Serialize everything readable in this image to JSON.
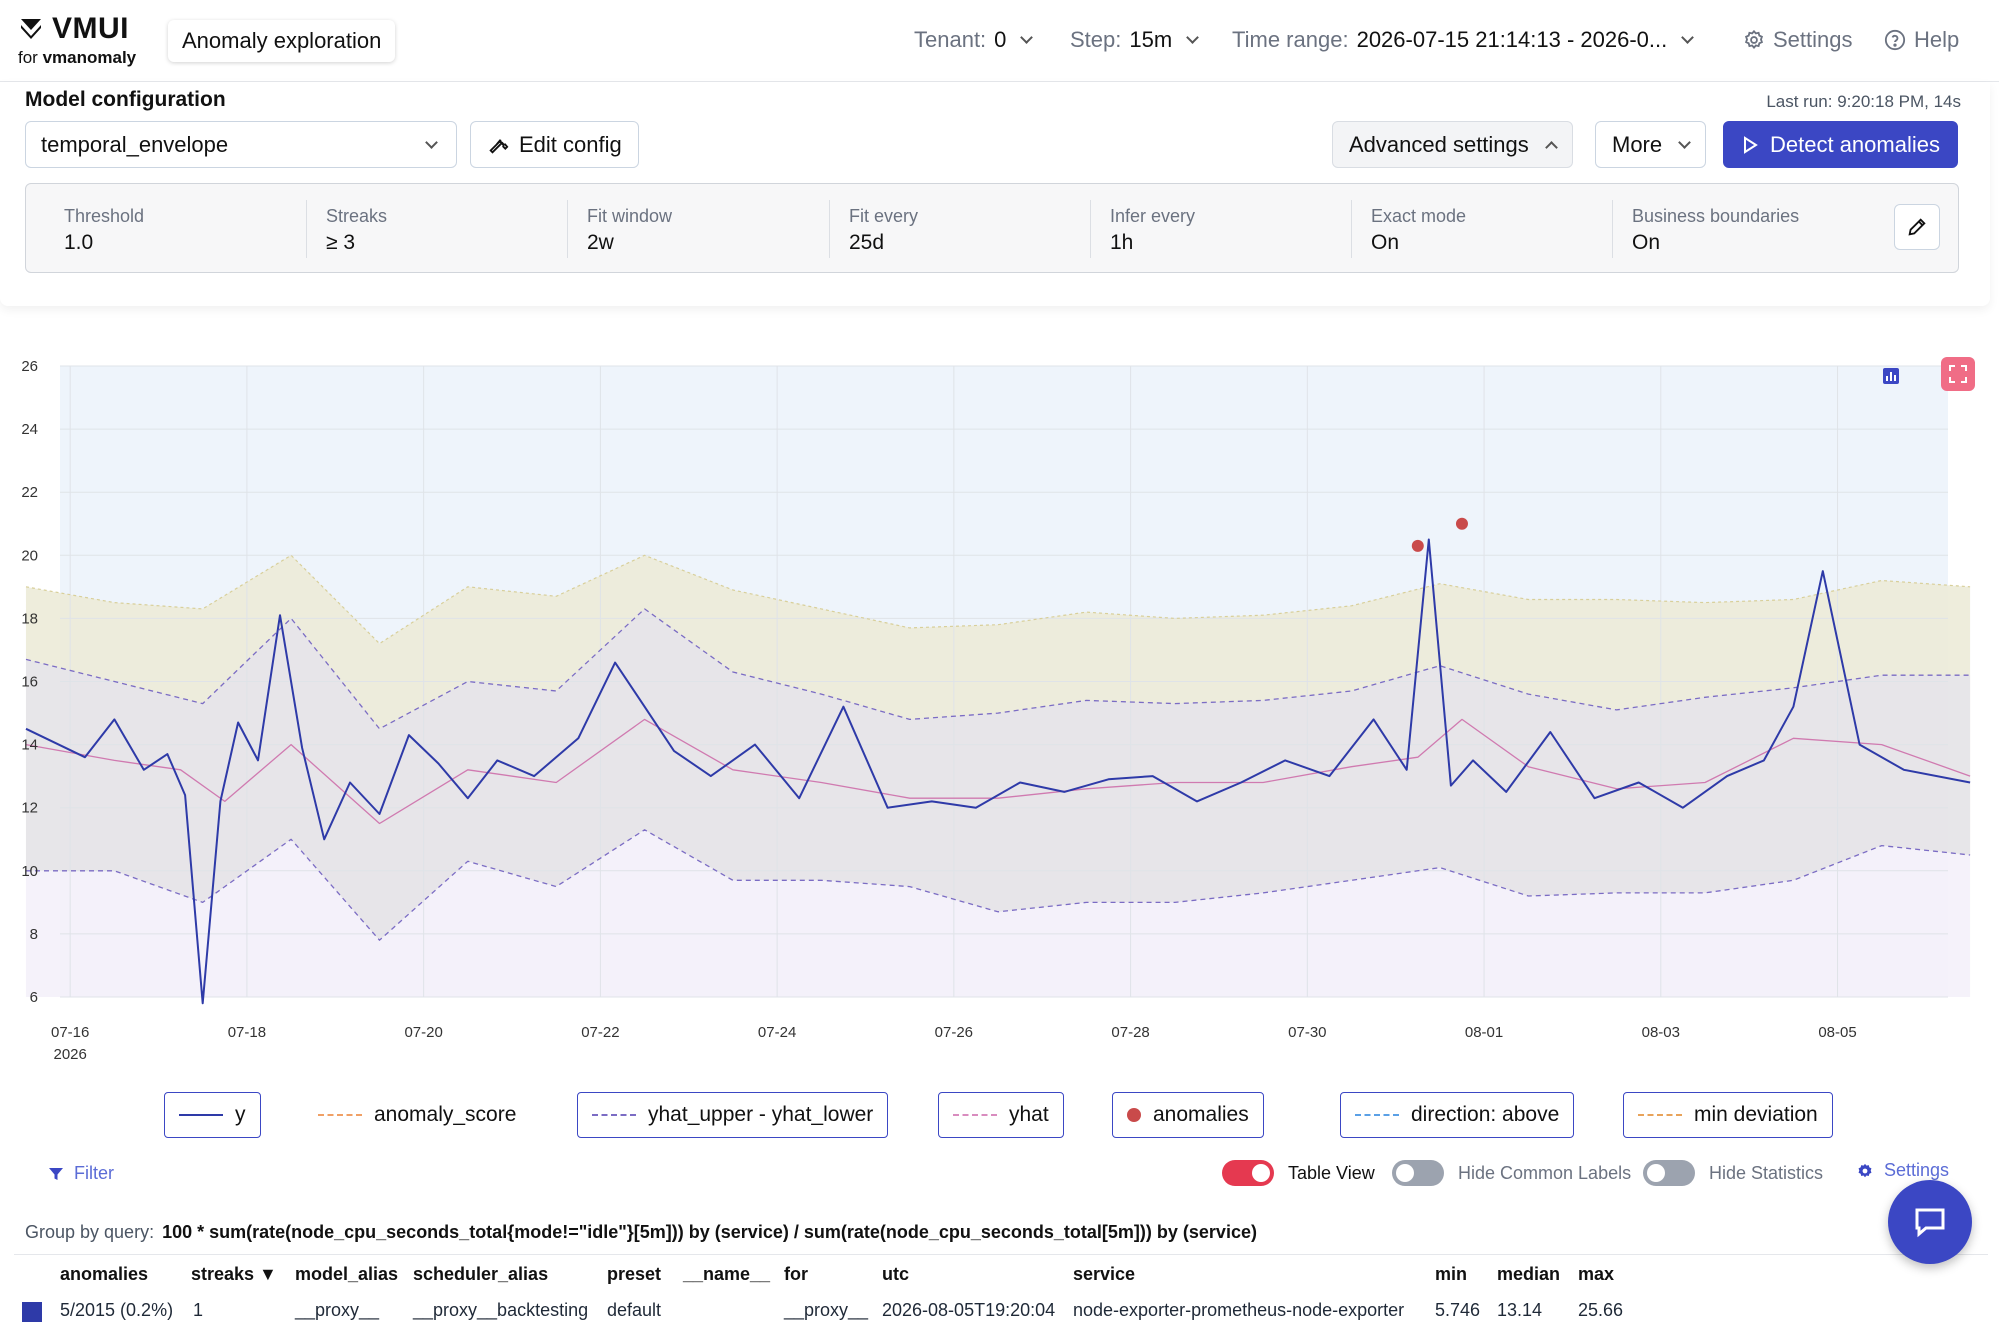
{
  "header": {
    "logo_main": "VMUI",
    "logo_for": "for",
    "logo_product": "vmanomaly",
    "active_tab": "Anomaly exploration",
    "tenant_label": "Tenant:",
    "tenant_value": "0",
    "step_label": "Step:",
    "step_value": "15m",
    "time_range_label": "Time range:",
    "time_range_value": "2026-07-15 21:14:13 - 2026-0...",
    "settings_label": "Settings",
    "help_label": "Help"
  },
  "model_config": {
    "title": "Model configuration",
    "last_run": "Last run: 9:20:18 PM, 14s",
    "model_select": "temporal_envelope",
    "edit_config_label": "Edit config",
    "advanced_settings_label": "Advanced settings",
    "more_label": "More",
    "detect_label": "Detect anomalies",
    "params": [
      {
        "label": "Threshold",
        "value": "1.0"
      },
      {
        "label": "Streaks",
        "value": "≥ 3"
      },
      {
        "label": "Fit window",
        "value": "2w"
      },
      {
        "label": "Fit every",
        "value": "25d"
      },
      {
        "label": "Infer every",
        "value": "1h"
      },
      {
        "label": "Exact mode",
        "value": "On"
      },
      {
        "label": "Business boundaries",
        "value": "On"
      }
    ]
  },
  "chart_data": {
    "type": "line",
    "title": "",
    "xlabel": "",
    "ylabel": "",
    "ylim": [
      6,
      26
    ],
    "y_ticks": [
      "6",
      "8",
      "10",
      "12",
      "14",
      "16",
      "18",
      "20",
      "22",
      "24",
      "26"
    ],
    "x_range": [
      "2026-07-15",
      "2026-08-06"
    ],
    "x_ticks": [
      "07-16",
      "07-18",
      "07-20",
      "07-22",
      "07-24",
      "07-26",
      "07-28",
      "07-30",
      "08-01",
      "08-03",
      "08-05"
    ],
    "x_year_label": "2026",
    "grid": true,
    "series": [
      {
        "name": "y",
        "color": "#2e3aa8",
        "x": [
          "07-15",
          "07-16",
          "07-16",
          "07-16",
          "07-17",
          "07-17",
          "07-17",
          "07-17",
          "07-17",
          "07-18",
          "07-18",
          "07-18",
          "07-18",
          "07-19",
          "07-19",
          "07-19",
          "07-20",
          "07-20",
          "07-20",
          "07-21",
          "07-21",
          "07-22",
          "07-22",
          "07-22",
          "07-23",
          "07-23",
          "07-24",
          "07-24",
          "07-25",
          "07-25",
          "07-26",
          "07-26",
          "07-27",
          "07-27",
          "07-28",
          "07-28",
          "07-29",
          "07-29",
          "07-30",
          "07-30",
          "07-31",
          "07-31",
          "07-31",
          "07-31",
          "08-01",
          "08-01",
          "08-02",
          "08-02",
          "08-03",
          "08-03",
          "08-04",
          "08-04",
          "08-04",
          "08-05",
          "08-05",
          "08-06"
        ],
        "values": [
          14.5,
          13.6,
          14.8,
          13.2,
          13.7,
          12.4,
          5.8,
          12.2,
          14.7,
          13.5,
          18.1,
          13.9,
          11.0,
          12.8,
          11.8,
          14.3,
          13.4,
          12.3,
          13.5,
          13.0,
          14.2,
          16.6,
          15.2,
          13.8,
          13.0,
          14.0,
          12.3,
          15.2,
          12.0,
          12.2,
          12.0,
          12.8,
          12.5,
          12.9,
          13.0,
          12.2,
          12.8,
          13.5,
          13.0,
          14.8,
          13.2,
          20.5,
          12.7,
          13.5,
          12.5,
          14.4,
          12.3,
          12.8,
          12.0,
          13.0,
          13.5,
          15.2,
          19.5,
          14.0,
          13.2,
          12.8
        ]
      },
      {
        "name": "yhat",
        "color": "#d98cbf",
        "x": [
          "07-15",
          "07-16",
          "07-17",
          "07-17",
          "07-18",
          "07-19",
          "07-20",
          "07-21",
          "07-22",
          "07-23",
          "07-24",
          "07-25",
          "07-26",
          "07-27",
          "07-28",
          "07-29",
          "07-30",
          "07-31",
          "07-31",
          "08-01",
          "08-02",
          "08-03",
          "08-04",
          "08-05",
          "08-06"
        ],
        "values": [
          14.0,
          13.5,
          13.2,
          12.2,
          14.0,
          11.5,
          13.2,
          12.8,
          14.8,
          13.2,
          12.8,
          12.3,
          12.3,
          12.6,
          12.8,
          12.8,
          13.3,
          13.6,
          14.8,
          13.3,
          12.6,
          12.8,
          14.2,
          14.0,
          13.0
        ]
      },
      {
        "name": "yhat_upper - yhat_lower",
        "color": "#7b6cc4",
        "x": [
          "07-15",
          "07-16",
          "07-17",
          "07-18",
          "07-19",
          "07-20",
          "07-21",
          "07-22",
          "07-23",
          "07-24",
          "07-25",
          "07-26",
          "07-27",
          "07-28",
          "07-29",
          "07-30",
          "07-31",
          "08-01",
          "08-02",
          "08-03",
          "08-04",
          "08-05",
          "08-06"
        ],
        "upper": [
          16.7,
          16.0,
          15.3,
          18.0,
          14.5,
          16.0,
          15.7,
          18.3,
          16.3,
          15.6,
          14.8,
          15.0,
          15.4,
          15.3,
          15.4,
          15.7,
          16.5,
          15.6,
          15.1,
          15.5,
          15.8,
          16.2,
          16.2
        ],
        "lower": [
          10.0,
          10.0,
          9.0,
          11.0,
          7.8,
          10.3,
          9.5,
          11.3,
          9.7,
          9.7,
          9.5,
          8.7,
          9.0,
          9.0,
          9.3,
          9.7,
          10.1,
          9.2,
          9.3,
          9.3,
          9.7,
          10.8,
          10.5
        ]
      },
      {
        "name": "min deviation",
        "color": "#e8b36a",
        "x": [
          "07-15",
          "07-16",
          "07-17",
          "07-18",
          "07-19",
          "07-20",
          "07-21",
          "07-22",
          "07-23",
          "07-24",
          "07-25",
          "07-26",
          "07-27",
          "07-28",
          "07-29",
          "07-30",
          "07-31",
          "08-01",
          "08-02",
          "08-03",
          "08-04",
          "08-05",
          "08-06"
        ],
        "values": [
          19.0,
          18.5,
          18.3,
          20.0,
          17.2,
          19.0,
          18.7,
          20.0,
          18.9,
          18.3,
          17.7,
          17.8,
          18.2,
          18.0,
          18.1,
          18.4,
          19.1,
          18.6,
          18.6,
          18.5,
          18.6,
          19.2,
          19.0
        ]
      },
      {
        "name": "anomalies",
        "color": "#c94a4a",
        "x": [
          "07-31",
          "07-31"
        ],
        "values": [
          20.3,
          21.0
        ]
      }
    ],
    "legend": [
      "y",
      "anomaly_score",
      "yhat_upper - yhat_lower",
      "yhat",
      "anomalies",
      "direction: above",
      "min deviation"
    ],
    "legend_colors": [
      "#2e3aa8",
      "#f0a066",
      "#7b6cc4",
      "#d98cbf",
      "#c94a4a",
      "#5aa0e6",
      "#e8a35a"
    ],
    "legend_active": [
      true,
      false,
      true,
      true,
      true,
      true,
      true
    ]
  },
  "controls": {
    "filter_label": "Filter",
    "table_view_label": "Table View",
    "hide_common_labels_label": "Hide Common Labels",
    "hide_statistics_label": "Hide Statistics",
    "settings_label": "Settings"
  },
  "group_query": {
    "label": "Group by query:",
    "query": "100 * sum(rate(node_cpu_seconds_total{mode!=\"idle\"}[5m])) by (service) / sum(rate(node_cpu_seconds_total[5m])) by (service)"
  },
  "table": {
    "headers": [
      "anomalies",
      "streaks ▼",
      "model_alias",
      "scheduler_alias",
      "preset",
      "__name__",
      "for",
      "utc",
      "service",
      "min",
      "median",
      "max"
    ],
    "rows": [
      [
        "5/2015 (0.2%)",
        "1",
        "__proxy__",
        "__proxy__backtesting",
        "default",
        "",
        "__proxy__",
        "2026-08-05T19:20:04",
        "node-exporter-prometheus-node-exporter",
        "5.746",
        "13.14",
        "25.66"
      ]
    ]
  }
}
